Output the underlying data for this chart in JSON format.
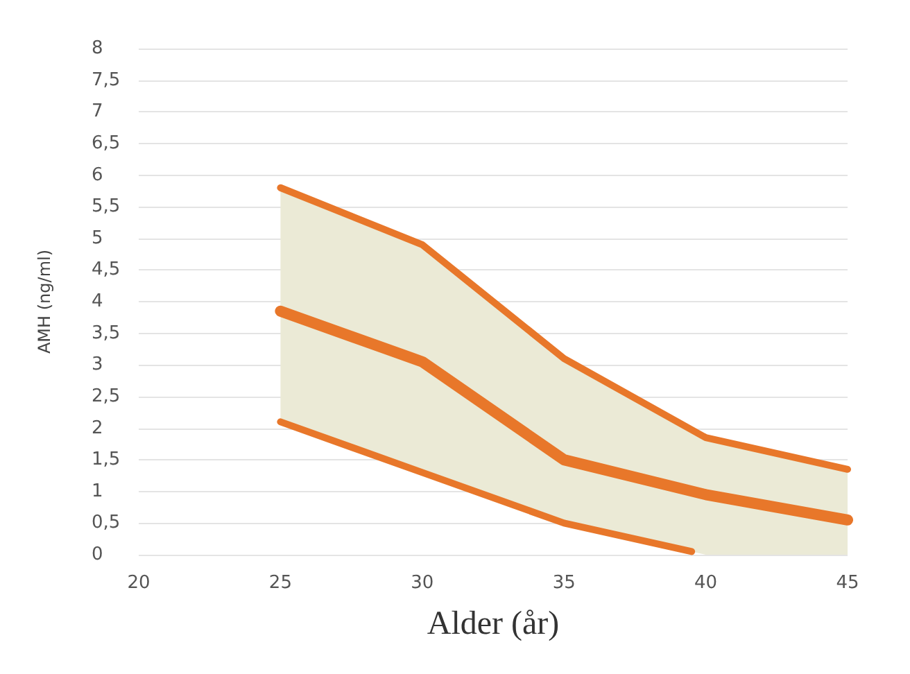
{
  "chart_data": {
    "type": "line",
    "xlabel": "Alder (år)",
    "ylabel": "AMH (ng/ml)",
    "x": [
      25,
      30,
      35,
      40,
      45
    ],
    "series": [
      {
        "color": "#e8772a",
        "values": [
          5.8,
          4.9,
          3.1,
          1.85,
          1.35
        ]
      },
      {
        "color": "#e8772a",
        "values": [
          3.85,
          3.05,
          1.5,
          0.95,
          0.55
        ],
        "lower": [
          2.1,
          1.3,
          0.5,
          0,
          0
        ],
        "upper": [
          5.8,
          4.9,
          3.1,
          1.85,
          1.35
        ]
      },
      {
        "color": "#e8772a",
        "x": [
          25,
          30,
          35,
          39.5
        ],
        "values": [
          2.1,
          1.3,
          0.5,
          0.05
        ]
      }
    ],
    "xlim": [
      20,
      45
    ],
    "xticks": [
      20,
      25,
      30,
      35,
      40,
      45
    ],
    "ylim": [
      0,
      8
    ],
    "yticks": [
      0,
      {
        "value": 0.5,
        "label": "0,5"
      },
      1,
      {
        "value": 1.5,
        "label": "1,5"
      },
      2,
      {
        "value": 2.5,
        "label": "2,5"
      },
      3,
      {
        "value": 3.5,
        "label": "3,5"
      },
      4,
      {
        "value": 4.5,
        "label": "4,5"
      },
      5,
      {
        "value": 5.5,
        "label": "5,5"
      },
      6,
      {
        "value": 6.5,
        "label": "6,5"
      },
      7,
      {
        "value": 7.5,
        "label": "7,5"
      },
      8
    ],
    "grid": "y",
    "marker": "none",
    "line_style": "solid"
  }
}
